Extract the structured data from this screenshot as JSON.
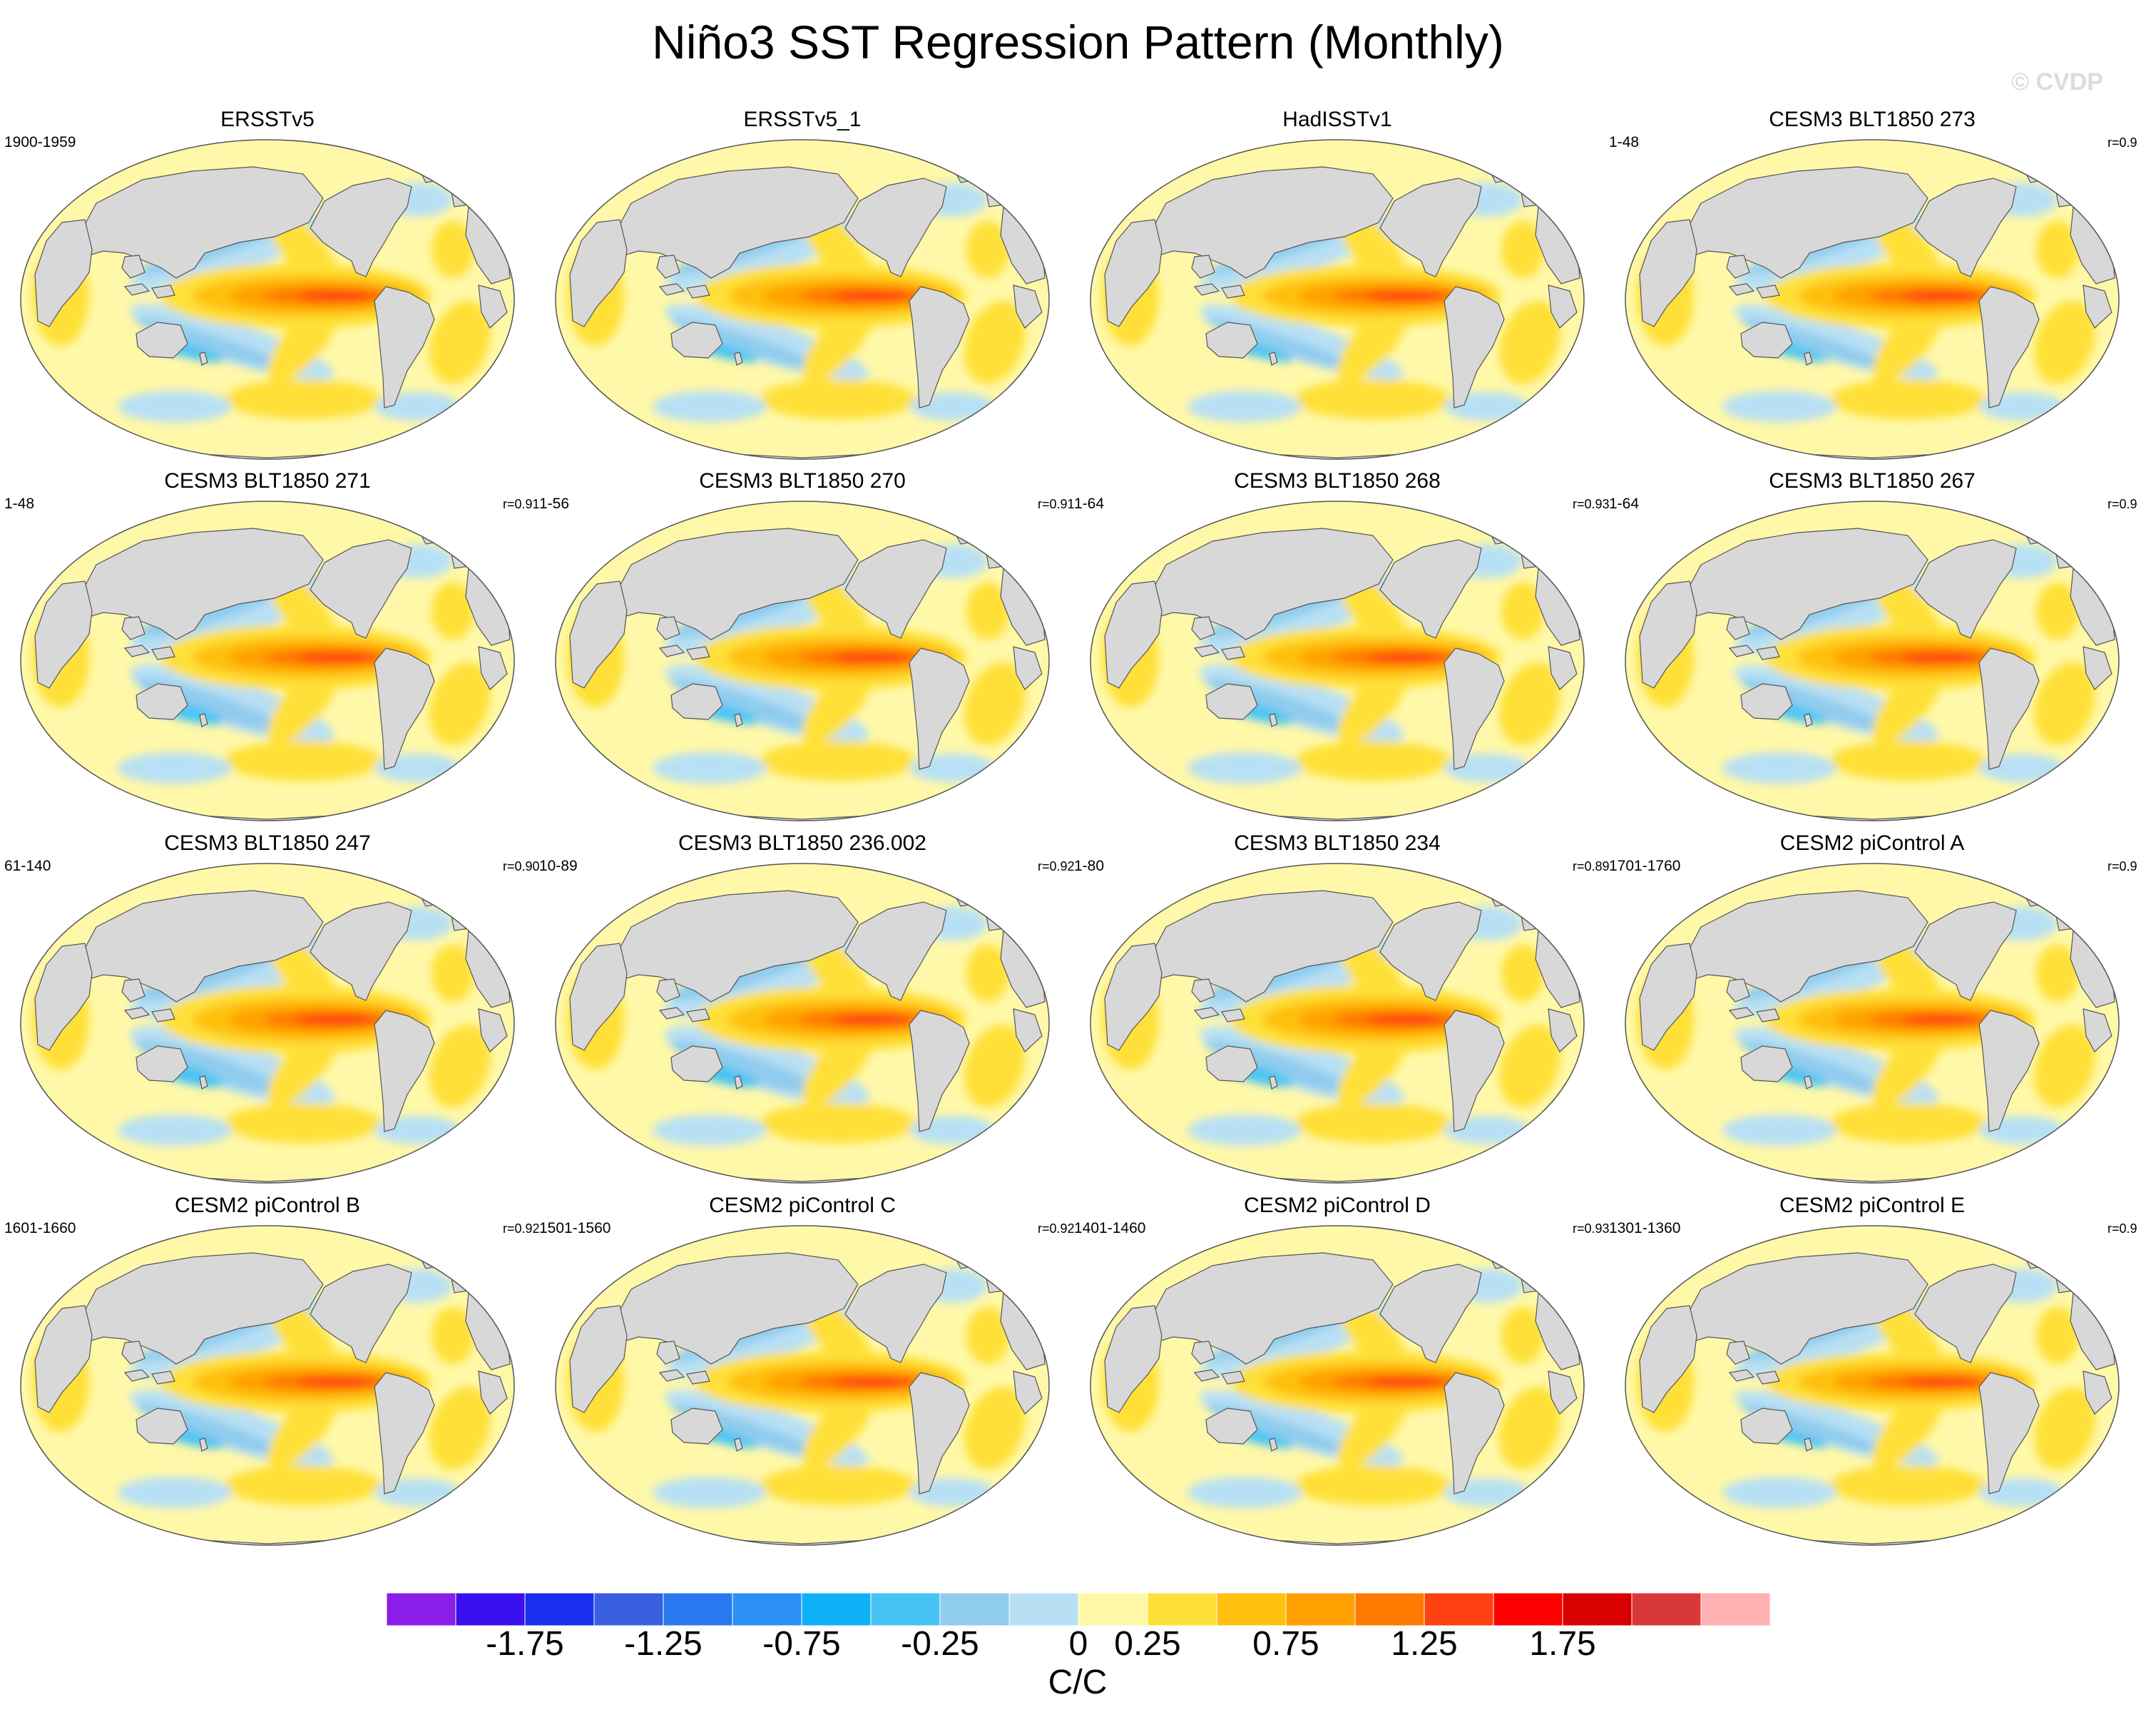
{
  "title": "Niño3 SST Regression Pattern (Monthly)",
  "watermark": "© CVDP",
  "panels": [
    {
      "title": "ERSSTv5",
      "years": "1900-1959",
      "corr": "",
      "warm_strength": 1.0,
      "cool_strength": 0.6
    },
    {
      "title": "ERSSTv5_1",
      "years": "",
      "corr": "",
      "warm_strength": 1.0,
      "cool_strength": 0.6
    },
    {
      "title": "HadISSTv1",
      "years": "",
      "corr": "",
      "warm_strength": 0.95,
      "cool_strength": 0.55
    },
    {
      "title": "CESM3 BLT1850 273",
      "years": "1-48",
      "corr": "r=0.9",
      "warm_strength": 1.0,
      "cool_strength": 0.55
    },
    {
      "title": "CESM3 BLT1850 271",
      "years": "1-48",
      "corr": "r=0.91",
      "warm_strength": 1.0,
      "cool_strength": 0.75
    },
    {
      "title": "CESM3 BLT1850 270",
      "years": "1-56",
      "corr": "r=0.91",
      "warm_strength": 1.0,
      "cool_strength": 0.7
    },
    {
      "title": "CESM3 BLT1850 268",
      "years": "1-64",
      "corr": "r=0.93",
      "warm_strength": 0.95,
      "cool_strength": 0.7
    },
    {
      "title": "CESM3 BLT1850 267",
      "years": "1-64",
      "corr": "r=0.9",
      "warm_strength": 1.0,
      "cool_strength": 0.65
    },
    {
      "title": "CESM3 BLT1850 247",
      "years": "61-140",
      "corr": "r=0.90",
      "warm_strength": 1.05,
      "cool_strength": 0.8
    },
    {
      "title": "CESM3 BLT1850 236.002",
      "years": "10-89",
      "corr": "r=0.92",
      "warm_strength": 1.0,
      "cool_strength": 0.8
    },
    {
      "title": "CESM3 BLT1850 234",
      "years": "1-80",
      "corr": "r=0.89",
      "warm_strength": 1.05,
      "cool_strength": 0.75
    },
    {
      "title": "CESM2 piControl A",
      "years": "1701-1760",
      "corr": "r=0.9",
      "warm_strength": 0.95,
      "cool_strength": 0.65
    },
    {
      "title": "CESM2 piControl B",
      "years": "1601-1660",
      "corr": "r=0.92",
      "warm_strength": 0.95,
      "cool_strength": 0.65
    },
    {
      "title": "CESM2 piControl C",
      "years": "1501-1560",
      "corr": "r=0.92",
      "warm_strength": 0.95,
      "cool_strength": 0.6
    },
    {
      "title": "CESM2 piControl D",
      "years": "1401-1460",
      "corr": "r=0.93",
      "warm_strength": 0.95,
      "cool_strength": 0.6
    },
    {
      "title": "CESM2 piControl E",
      "years": "1301-1360",
      "corr": "r=0.9",
      "warm_strength": 0.9,
      "cool_strength": 0.55
    }
  ],
  "colorbar": {
    "units": "C/C",
    "colors": [
      "#8a1ee8",
      "#3a10f0",
      "#1a30f0",
      "#3a60e0",
      "#2a78f0",
      "#2a90f8",
      "#10b0f8",
      "#48c4f4",
      "#90ccee",
      "#b8e0f4",
      "#fff8a8",
      "#ffe038",
      "#ffc010",
      "#ffa000",
      "#ff7800",
      "#ff4010",
      "#ff0000",
      "#d80000",
      "#d83838",
      "#ffb0b0"
    ],
    "tick_labels": [
      "-1.75",
      "-1.25",
      "-0.75",
      "-0.25",
      "0",
      "0.25",
      "0.75",
      "1.25",
      "1.75"
    ],
    "tick_boundaries": [
      2,
      4,
      6,
      8,
      10,
      11,
      13,
      15,
      17
    ]
  }
}
